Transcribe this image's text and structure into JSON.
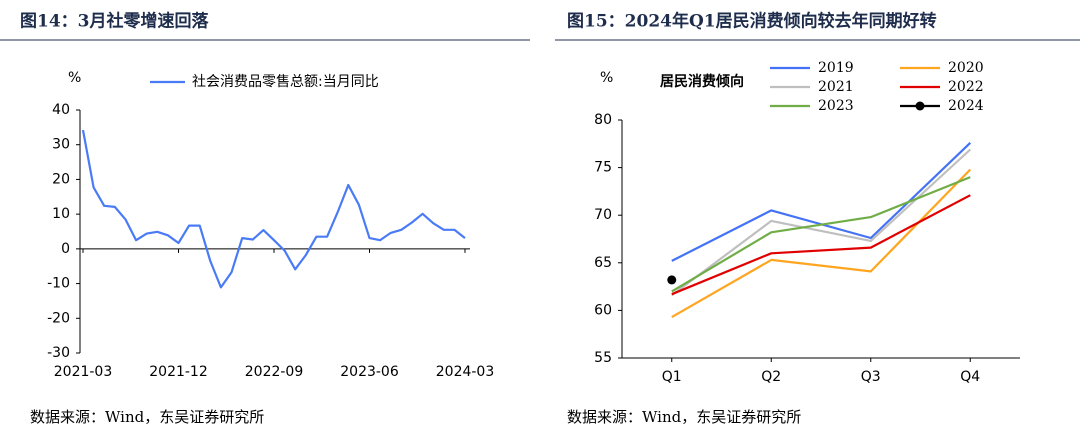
{
  "chart_data": [
    {
      "type": "line",
      "title": "图14：3月社零增速回落",
      "y_label": "%",
      "source": "数据来源：Wind，东吴证券研究所",
      "categories": [
        "2021-03",
        null,
        null,
        null,
        null,
        null,
        null,
        null,
        null,
        "2021-12",
        null,
        null,
        null,
        null,
        null,
        null,
        null,
        null,
        "2022-09",
        null,
        null,
        null,
        null,
        null,
        null,
        null,
        null,
        "2023-06",
        null,
        null,
        null,
        null,
        null,
        null,
        null,
        null,
        "2024-03"
      ],
      "series": [
        {
          "name": "社会消费品零售总额:当月同比",
          "color": "#4a7bf7",
          "values": [
            34.2,
            17.7,
            12.4,
            12.1,
            8.5,
            2.5,
            4.4,
            4.9,
            3.9,
            1.7,
            6.7,
            6.7,
            -3.5,
            -11.1,
            -6.7,
            3.1,
            2.7,
            5.4,
            2.5,
            -0.5,
            -5.9,
            -1.8,
            3.5,
            3.5,
            10.6,
            18.4,
            12.7,
            3.1,
            2.5,
            4.6,
            5.5,
            7.6,
            10.1,
            7.4,
            5.5,
            5.5,
            3.1
          ]
        }
      ],
      "ylim": [
        -30,
        40
      ],
      "yticks": [
        -30,
        -20,
        -10,
        0,
        10,
        20,
        30,
        40
      ]
    },
    {
      "type": "line",
      "title": "图15：2024年Q1居民消费倾向较去年同期好转",
      "subtitle": "居民消费倾向",
      "y_label": "%",
      "source": "数据来源：Wind，东吴证券研究所",
      "categories": [
        "Q1",
        "Q2",
        "Q3",
        "Q4"
      ],
      "series": [
        {
          "name": "2019",
          "color": "#4472f4",
          "values": [
            65.2,
            70.5,
            67.6,
            77.6
          ]
        },
        {
          "name": "2020",
          "color": "#ffa520",
          "values": [
            59.3,
            65.3,
            64.1,
            74.8
          ]
        },
        {
          "name": "2021",
          "color": "#bfbfbf",
          "values": [
            61.6,
            69.4,
            67.3,
            76.9
          ]
        },
        {
          "name": "2022",
          "color": "#e00000",
          "values": [
            61.7,
            66.0,
            66.6,
            72.1
          ]
        },
        {
          "name": "2023",
          "color": "#70ad47",
          "values": [
            62.0,
            68.2,
            69.8,
            74.0
          ]
        },
        {
          "name": "2024",
          "color": "#000000",
          "marker": true,
          "values": [
            63.2,
            null,
            null,
            null
          ]
        }
      ],
      "ylim": [
        55,
        80
      ],
      "yticks": [
        55,
        60,
        65,
        70,
        75,
        80
      ]
    }
  ]
}
